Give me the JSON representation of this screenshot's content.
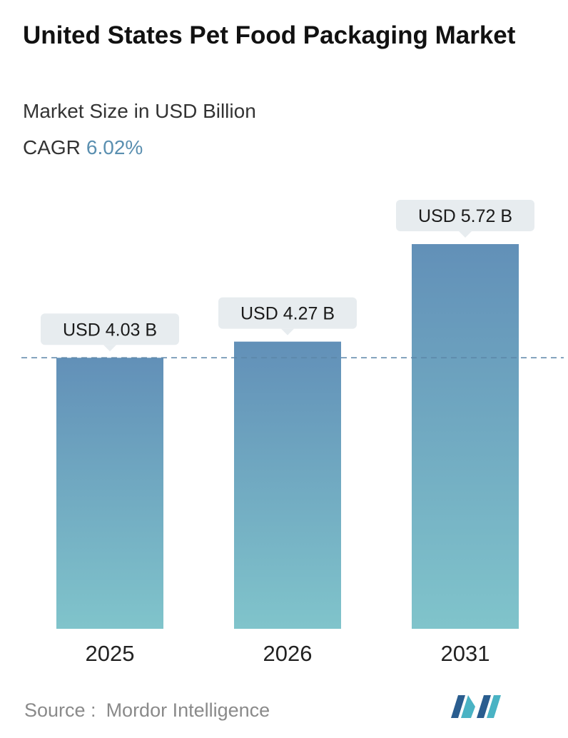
{
  "header": {
    "title": "United States Pet Food Packaging Market",
    "subtitle": "Market Size in USD Billion",
    "cagr_label": "CAGR",
    "cagr_value": "6.02%"
  },
  "chart_data": {
    "type": "bar",
    "categories": [
      "2025",
      "2026",
      "2031"
    ],
    "values": [
      4.03,
      4.27,
      5.72
    ],
    "data_labels": [
      "USD 4.03 B",
      "USD 4.27 B",
      "USD 5.72 B"
    ],
    "title": "United States Pet Food Packaging Market",
    "subtitle": "Market Size in USD Billion",
    "xlabel": "",
    "ylabel": "",
    "grid": false,
    "reference_line": {
      "value": 4.03,
      "style": "dashed"
    },
    "colors": {
      "bar_top": "#6290b8",
      "bar_bottom": "#80c4cb",
      "label_box": "#e7ecef",
      "reference_line": "#5b86a8"
    }
  },
  "footer": {
    "source_label": "Source :",
    "source_value": "Mordor Intelligence",
    "logo_name": "mordor-intelligence-logo"
  }
}
